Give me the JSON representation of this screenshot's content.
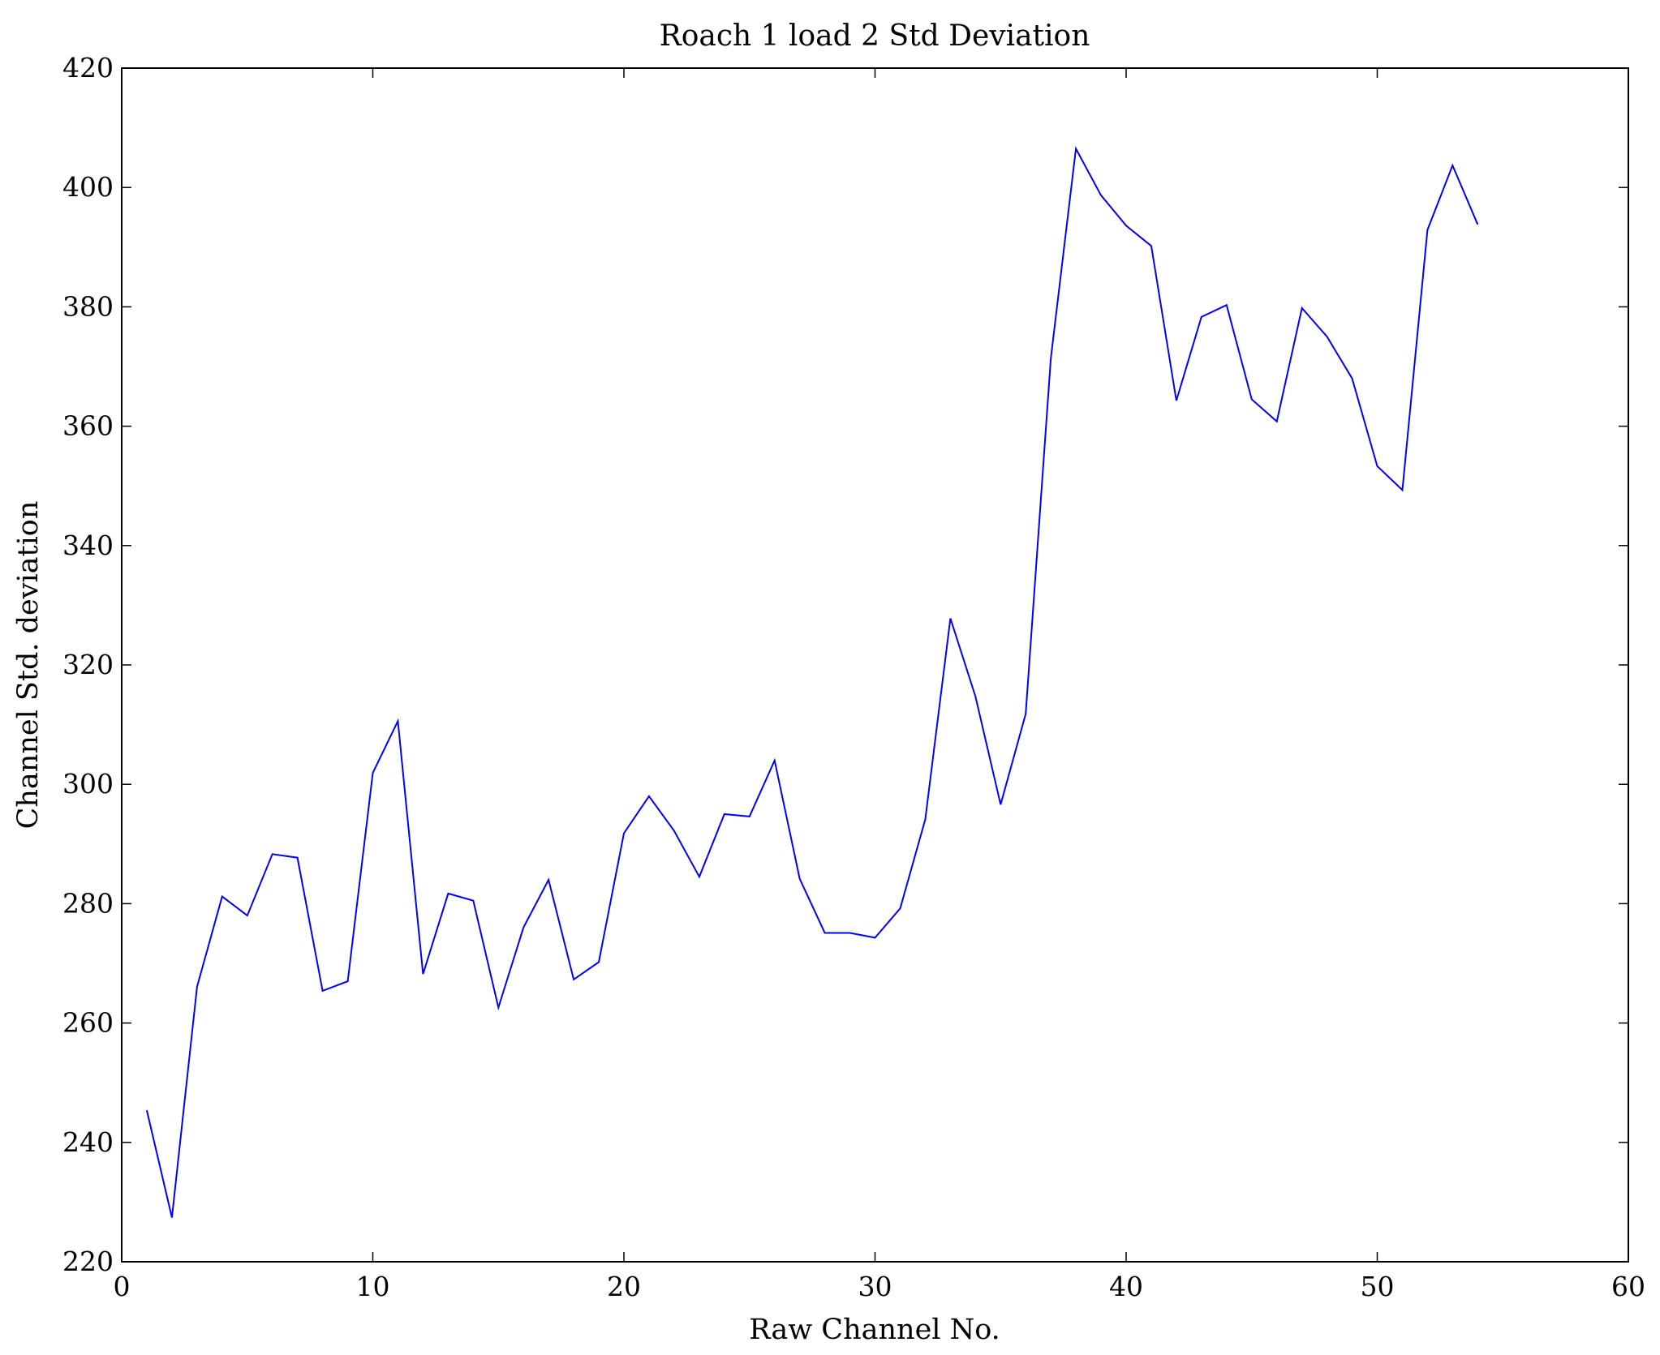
{
  "chart_data": {
    "type": "line",
    "title": "Roach 1 load 2 Std Deviation",
    "xlabel": "Raw Channel No.",
    "ylabel": "Channel Std. deviation",
    "xlim": [
      0,
      60
    ],
    "ylim": [
      220,
      420
    ],
    "xticks": [
      0,
      10,
      20,
      30,
      40,
      50,
      60
    ],
    "yticks": [
      220,
      240,
      260,
      280,
      300,
      320,
      340,
      360,
      380,
      400,
      420
    ],
    "grid": false,
    "series": [
      {
        "name": "std deviation",
        "color": "#0000ff",
        "x": [
          1,
          2,
          3,
          4,
          5,
          6,
          7,
          8,
          9,
          10,
          11,
          12,
          13,
          14,
          15,
          16,
          17,
          18,
          19,
          20,
          21,
          22,
          23,
          24,
          25,
          26,
          27,
          28,
          29,
          30,
          31,
          32,
          33,
          34,
          35,
          36,
          37,
          38,
          39,
          40,
          41,
          42,
          43,
          44,
          45,
          46,
          47,
          48,
          49,
          50,
          51,
          52,
          53,
          54
        ],
        "y": [
          245.4,
          227.4,
          266.1,
          281.2,
          278.0,
          288.3,
          287.7,
          265.4,
          267.0,
          301.9,
          310.6,
          268.2,
          281.7,
          280.5,
          262.6,
          276.0,
          284.0,
          267.3,
          270.2,
          291.8,
          298.0,
          292.2,
          284.5,
          295.0,
          294.6,
          304.0,
          284.2,
          275.1,
          275.1,
          274.3,
          279.2,
          294.1,
          327.8,
          314.7,
          296.6,
          311.8,
          371.4,
          406.5,
          398.7,
          393.6,
          390.2,
          364.3,
          378.3,
          380.3,
          364.5,
          360.8,
          379.8,
          375.0,
          368.0,
          353.3,
          349.3,
          392.9,
          403.7,
          393.8
        ]
      }
    ]
  }
}
